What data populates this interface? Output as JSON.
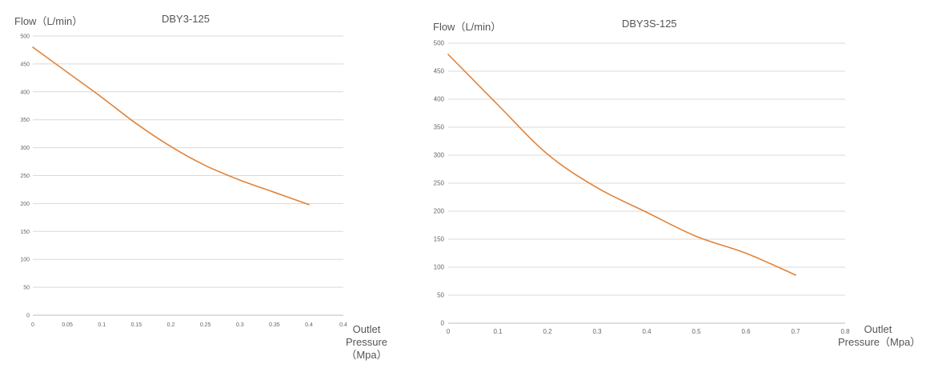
{
  "chart_data": [
    {
      "type": "line",
      "title": "DBY3-125",
      "ylabel": "Flow（L/min）",
      "xlabel": "Outlet Pressure（Mpa）",
      "xlabel_lines": [
        "Outlet",
        "Pressure",
        "（Mpa）"
      ],
      "xlim": [
        0,
        0.4
      ],
      "ylim": [
        0,
        500
      ],
      "x_ticks": [
        "0",
        "0.05",
        "0.1",
        "0.15",
        "0.2",
        "0.25",
        "0.3",
        "0.35",
        "0.4",
        "0.4"
      ],
      "y_ticks": [
        "0",
        "50",
        "100",
        "150",
        "200",
        "250",
        "300",
        "350",
        "400",
        "450",
        "500"
      ],
      "grid": true,
      "color": "#e0833a",
      "series": [
        {
          "x": [
            0,
            0.05,
            0.1,
            0.15,
            0.2,
            0.25,
            0.3,
            0.35,
            0.4
          ],
          "values": [
            480,
            435,
            390,
            343,
            302,
            268,
            242,
            220,
            198
          ]
        }
      ]
    },
    {
      "type": "line",
      "title": "DBY3S-125",
      "ylabel": "Flow（L/min）",
      "xlabel": "Outlet Pressure（Mpa）",
      "xlabel_lines": [
        "Outlet",
        "Pressure（Mpa）"
      ],
      "xlim": [
        0,
        0.8
      ],
      "ylim": [
        0,
        500
      ],
      "x_ticks": [
        "0",
        "0.1",
        "0.2",
        "0.3",
        "0.4",
        "0.5",
        "0.6",
        "0.7",
        "0.8"
      ],
      "y_ticks": [
        "0",
        "50",
        "100",
        "150",
        "200",
        "250",
        "300",
        "350",
        "400",
        "450",
        "500"
      ],
      "grid": true,
      "color": "#e0833a",
      "series": [
        {
          "x": [
            0,
            0.1,
            0.2,
            0.3,
            0.4,
            0.5,
            0.6,
            0.7
          ],
          "values": [
            480,
            390,
            302,
            242,
            198,
            155,
            125,
            86
          ]
        }
      ]
    }
  ]
}
